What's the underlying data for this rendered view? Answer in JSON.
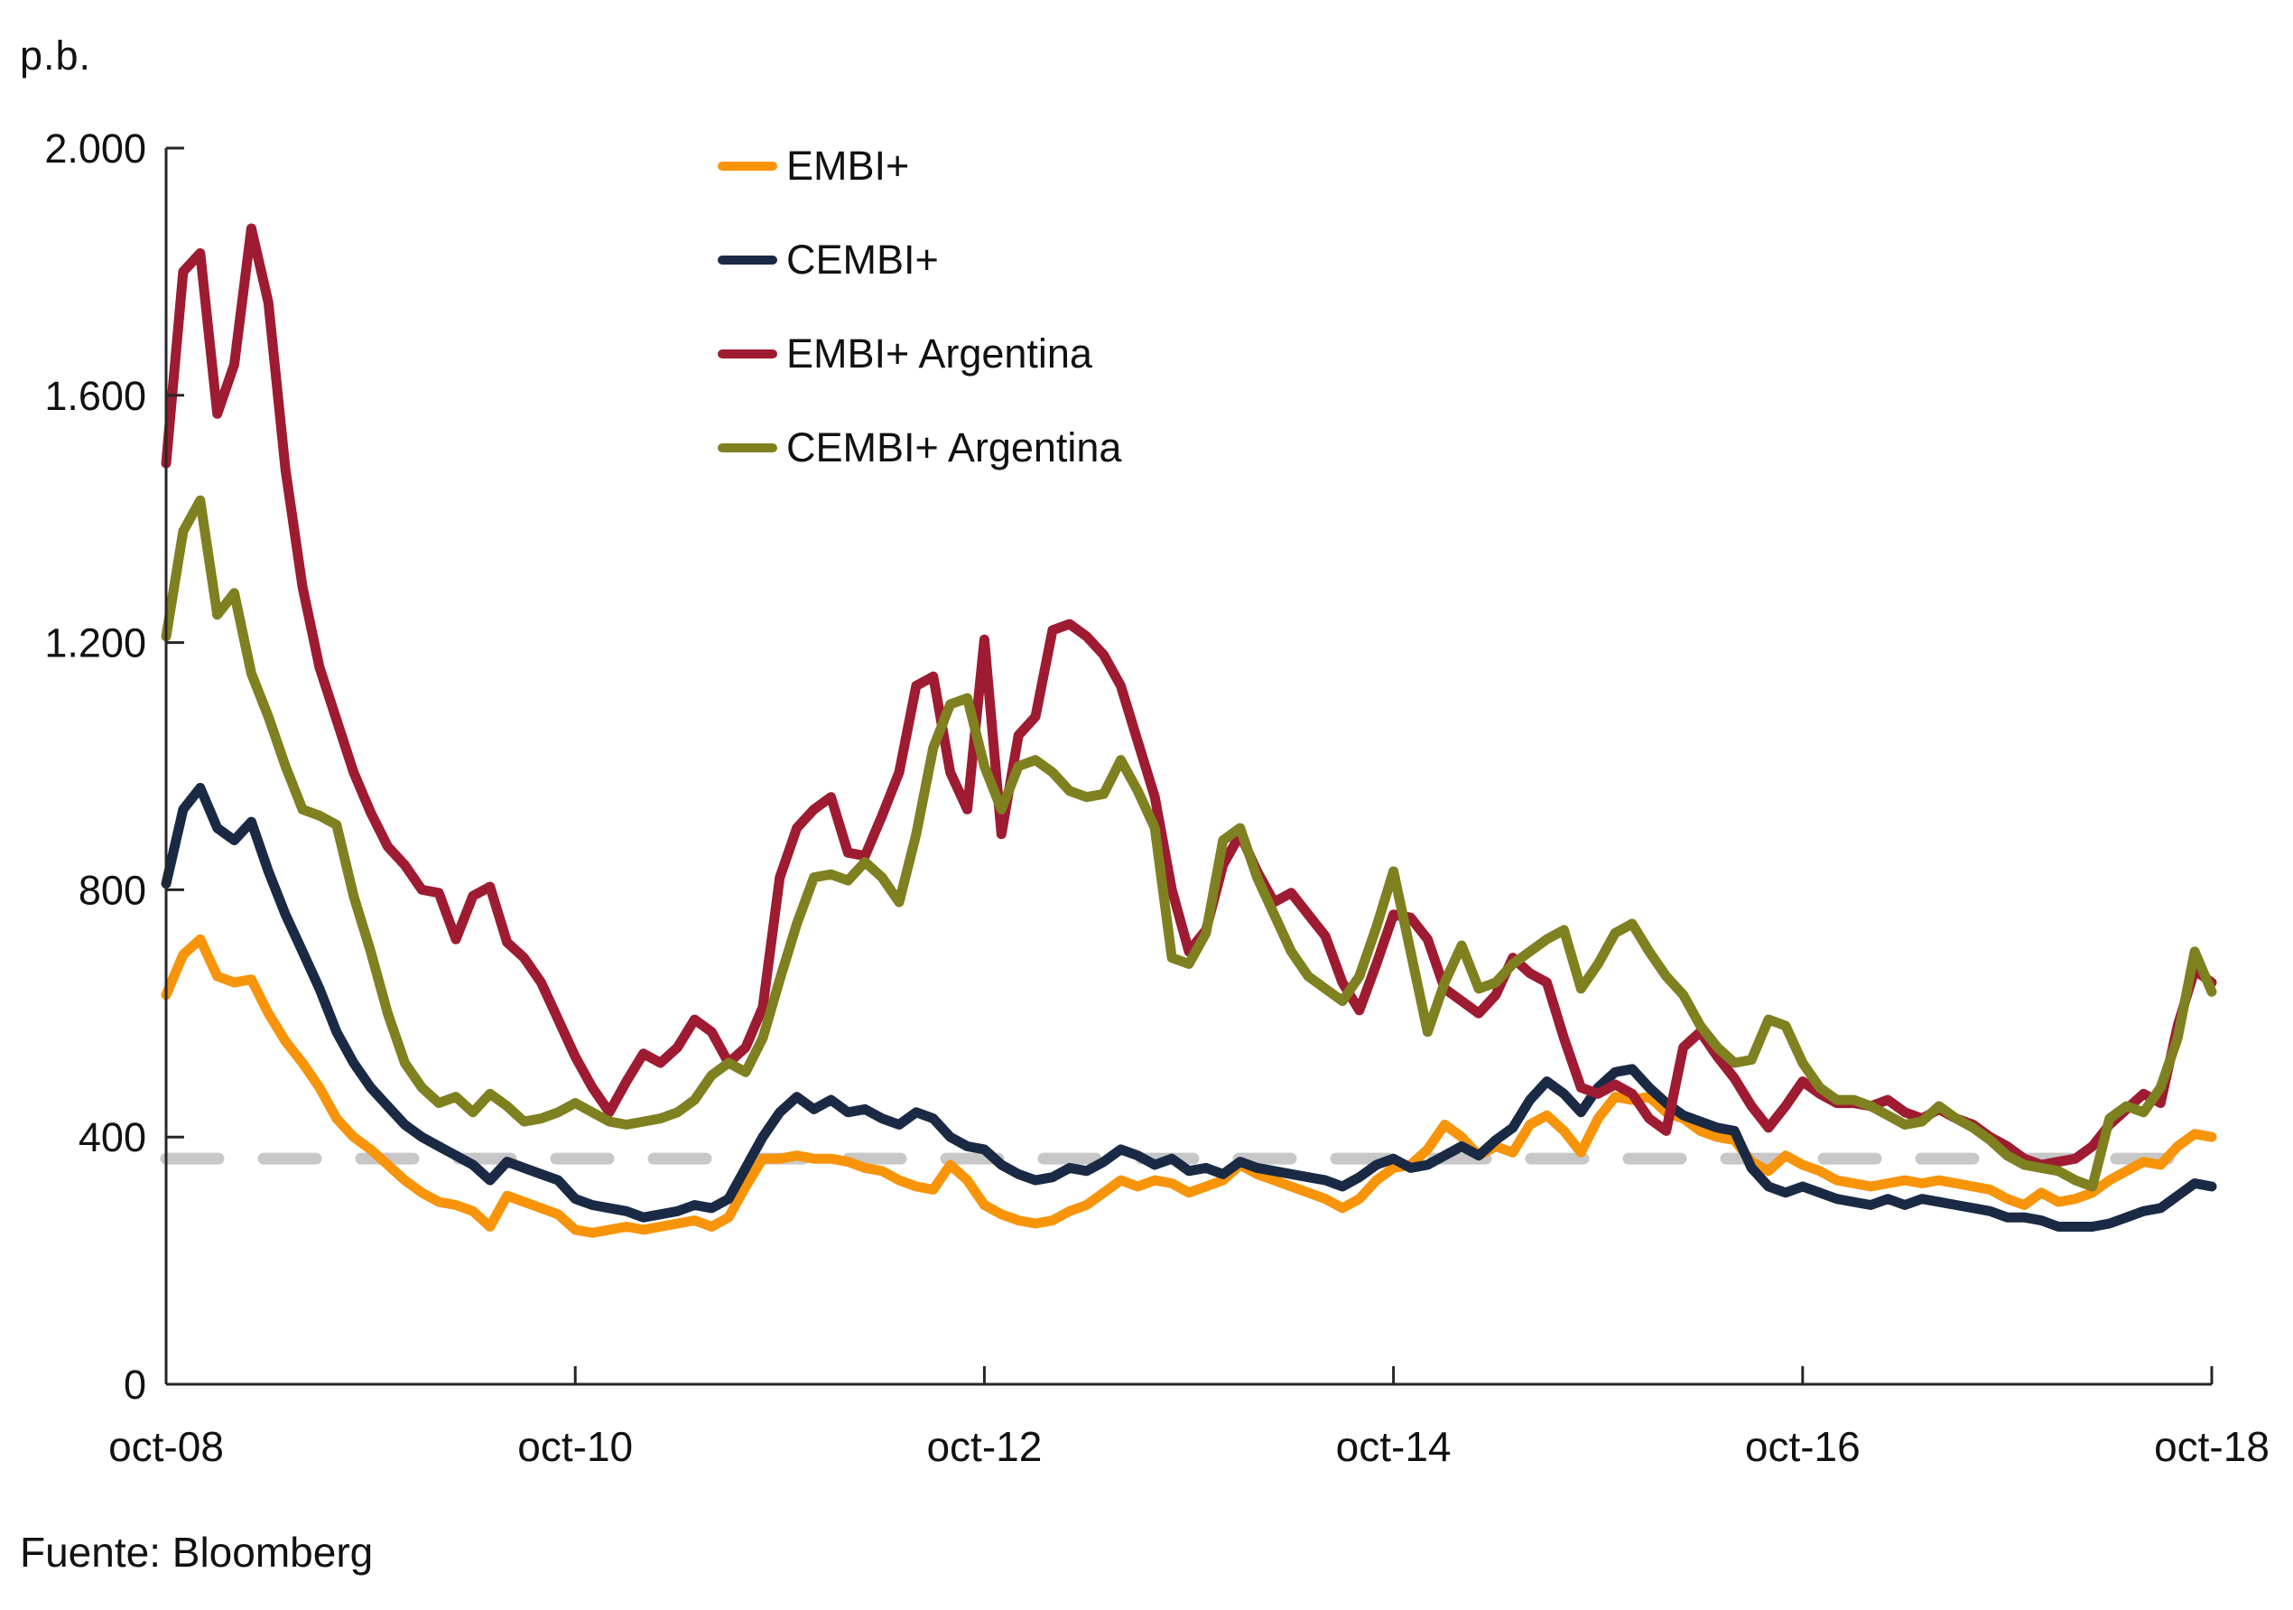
{
  "page": {
    "background": "#FFFFFF"
  },
  "source": {
    "text": "Fuente: Bloomberg"
  },
  "chart_data": {
    "type": "line",
    "title": "",
    "ylabel": "p.b.",
    "grid": false,
    "legend_position": "top-center-vertical",
    "axis_color": "#262626",
    "ylim": [
      0,
      2000
    ],
    "y_tick_values": [
      0,
      400,
      800,
      1200,
      1600,
      2000
    ],
    "y_tick_labels": [
      "0",
      "400",
      "800",
      "1.200",
      "1.600",
      "2.000"
    ],
    "x_tick_labels": [
      "oct-08",
      "oct-10",
      "oct-12",
      "oct-14",
      "oct-16",
      "oct-18"
    ],
    "x_frequency": "monthly",
    "x_start": "oct-08",
    "x_end": "oct-18",
    "reference_line": {
      "value": 365,
      "style": "dashed",
      "color": "#C7C7C7"
    },
    "series": [
      {
        "name": "EMBI+",
        "color": "#F7940A",
        "values": [
          630,
          695,
          720,
          660,
          650,
          655,
          600,
          555,
          520,
          480,
          430,
          400,
          380,
          355,
          330,
          310,
          295,
          290,
          280,
          255,
          305,
          295,
          285,
          275,
          250,
          245,
          250,
          255,
          250,
          255,
          260,
          265,
          255,
          270,
          320,
          365,
          365,
          370,
          365,
          365,
          360,
          350,
          345,
          330,
          320,
          315,
          355,
          330,
          290,
          275,
          265,
          260,
          265,
          280,
          290,
          310,
          330,
          320,
          330,
          325,
          310,
          320,
          330,
          355,
          340,
          330,
          320,
          310,
          300,
          285,
          300,
          330,
          350,
          355,
          380,
          420,
          400,
          370,
          385,
          375,
          420,
          435,
          410,
          375,
          430,
          465,
          460,
          465,
          440,
          430,
          410,
          400,
          395,
          360,
          345,
          370,
          355,
          345,
          330,
          325,
          320,
          325,
          330,
          325,
          330,
          325,
          320,
          315,
          300,
          290,
          310,
          295,
          300,
          310,
          330,
          345,
          360,
          355,
          385,
          405,
          400
        ]
      },
      {
        "name": "CEMBI+",
        "color": "#1B2A44",
        "values": [
          810,
          930,
          965,
          900,
          880,
          910,
          830,
          760,
          700,
          640,
          570,
          520,
          480,
          450,
          420,
          400,
          385,
          370,
          355,
          330,
          360,
          350,
          340,
          330,
          300,
          290,
          285,
          280,
          270,
          275,
          280,
          290,
          285,
          300,
          350,
          400,
          440,
          465,
          445,
          460,
          440,
          445,
          430,
          420,
          440,
          430,
          400,
          385,
          380,
          355,
          340,
          330,
          335,
          350,
          345,
          360,
          380,
          370,
          355,
          365,
          345,
          350,
          340,
          360,
          350,
          345,
          340,
          335,
          330,
          320,
          335,
          355,
          365,
          350,
          355,
          370,
          385,
          370,
          395,
          415,
          460,
          490,
          470,
          440,
          480,
          505,
          510,
          480,
          455,
          435,
          425,
          415,
          410,
          350,
          320,
          310,
          320,
          310,
          300,
          295,
          290,
          300,
          290,
          300,
          295,
          290,
          285,
          280,
          270,
          270,
          265,
          255,
          255,
          255,
          260,
          270,
          280,
          285,
          305,
          325,
          320
        ]
      },
      {
        "name": "EMBI+ Argentina",
        "color": "#9E1B32",
        "values": [
          1490,
          1800,
          1830,
          1570,
          1650,
          1870,
          1750,
          1480,
          1290,
          1160,
          1075,
          990,
          925,
          870,
          840,
          800,
          795,
          720,
          790,
          805,
          715,
          690,
          650,
          590,
          530,
          480,
          440,
          490,
          535,
          520,
          545,
          590,
          570,
          520,
          545,
          610,
          820,
          900,
          930,
          950,
          860,
          855,
          920,
          990,
          1130,
          1145,
          990,
          930,
          1205,
          890,
          1050,
          1080,
          1220,
          1230,
          1210,
          1180,
          1130,
          1040,
          950,
          800,
          700,
          735,
          840,
          890,
          830,
          780,
          795,
          760,
          725,
          650,
          605,
          680,
          760,
          755,
          720,
          640,
          620,
          600,
          630,
          690,
          665,
          650,
          560,
          480,
          470,
          485,
          470,
          430,
          410,
          545,
          570,
          530,
          495,
          450,
          415,
          450,
          490,
          470,
          455,
          455,
          450,
          460,
          440,
          430,
          445,
          430,
          420,
          400,
          385,
          365,
          355,
          360,
          365,
          385,
          420,
          445,
          470,
          455,
          580,
          670,
          650
        ]
      },
      {
        "name": "CEMBI+ Argentina",
        "color": "#7F801F",
        "values": [
          1210,
          1380,
          1430,
          1245,
          1280,
          1150,
          1080,
          1000,
          930,
          920,
          905,
          790,
          700,
          600,
          520,
          480,
          455,
          465,
          440,
          470,
          450,
          425,
          430,
          440,
          455,
          440,
          425,
          420,
          425,
          430,
          440,
          460,
          500,
          520,
          505,
          560,
          655,
          745,
          820,
          825,
          815,
          845,
          820,
          780,
          890,
          1030,
          1100,
          1110,
          1000,
          930,
          1000,
          1010,
          990,
          960,
          950,
          955,
          1010,
          960,
          900,
          690,
          680,
          730,
          880,
          900,
          820,
          760,
          700,
          660,
          640,
          620,
          660,
          740,
          830,
          700,
          570,
          650,
          710,
          640,
          650,
          680,
          700,
          720,
          735,
          640,
          680,
          730,
          745,
          700,
          660,
          630,
          580,
          545,
          520,
          525,
          590,
          580,
          520,
          480,
          460,
          460,
          450,
          435,
          420,
          425,
          450,
          430,
          415,
          395,
          370,
          355,
          350,
          345,
          330,
          320,
          430,
          450,
          440,
          480,
          560,
          700,
          635
        ]
      }
    ]
  }
}
